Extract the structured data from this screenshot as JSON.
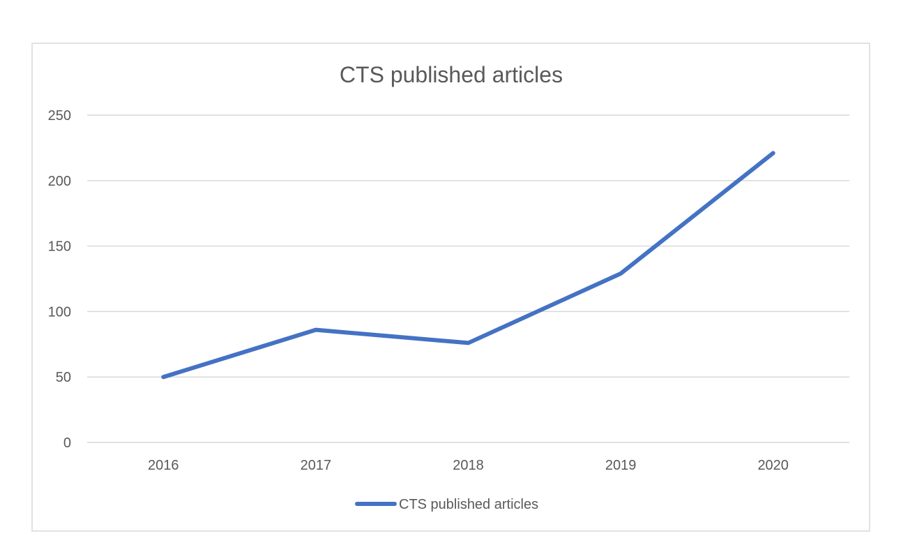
{
  "chart_data": {
    "type": "line",
    "title": "CTS published articles",
    "xlabel": "",
    "ylabel": "",
    "categories": [
      "2016",
      "2017",
      "2018",
      "2019",
      "2020"
    ],
    "series": [
      {
        "name": "CTS published articles",
        "values": [
          50,
          86,
          76,
          129,
          221
        ],
        "color": "#4472c4"
      }
    ],
    "ylim": [
      0,
      250
    ],
    "yticks": [
      0,
      50,
      100,
      150,
      200,
      250
    ],
    "grid": true,
    "legend": "bottom-center"
  }
}
